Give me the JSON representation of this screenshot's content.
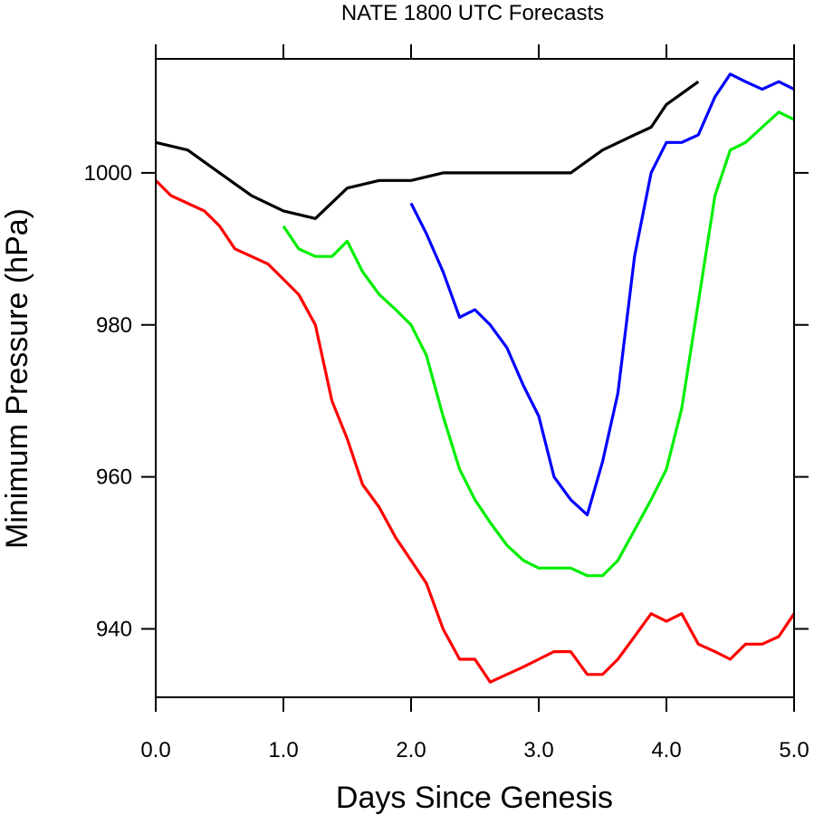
{
  "chart_data": {
    "type": "line",
    "title": "NATE 1800 UTC Forecasts",
    "xlabel": "Days Since Genesis",
    "ylabel": "Minimum Pressure (hPa)",
    "xlim": [
      0,
      5
    ],
    "ylim": [
      931,
      1015
    ],
    "x_ticks": [
      {
        "value": 0,
        "label": "0.0"
      },
      {
        "value": 1,
        "label": "1.0"
      },
      {
        "value": 2,
        "label": "2.0"
      },
      {
        "value": 3,
        "label": "3.0"
      },
      {
        "value": 4,
        "label": "4.0"
      },
      {
        "value": 5,
        "label": "5.0"
      }
    ],
    "y_ticks": [
      {
        "value": 940,
        "label": "940"
      },
      {
        "value": 960,
        "label": "960"
      },
      {
        "value": 980,
        "label": "980"
      },
      {
        "value": 1000,
        "label": "1000"
      }
    ],
    "grid": false,
    "legend": "none",
    "series": [
      {
        "color": "#000000",
        "x": [
          0,
          0.25,
          0.5,
          0.75,
          1.0,
          1.25,
          1.5,
          1.75,
          2.0,
          2.25,
          2.5,
          2.75,
          3.0,
          3.25,
          3.5,
          3.75,
          3.88,
          4.0,
          4.25
        ],
        "values": [
          1004,
          1003,
          1000,
          997,
          995,
          994,
          998,
          999,
          999,
          1000,
          1000,
          1000,
          1000,
          1000,
          1003,
          1005,
          1006,
          1009,
          1012
        ]
      },
      {
        "color": "#ff0000",
        "x": [
          0,
          0.12,
          0.25,
          0.38,
          0.5,
          0.62,
          0.75,
          0.88,
          1.0,
          1.12,
          1.25,
          1.38,
          1.5,
          1.62,
          1.75,
          1.88,
          2.0,
          2.12,
          2.25,
          2.38,
          2.5,
          2.62,
          2.75,
          2.88,
          3.0,
          3.12,
          3.25,
          3.38,
          3.5,
          3.62,
          3.75,
          3.88,
          4.0,
          4.12,
          4.25,
          4.38,
          4.5,
          4.62,
          4.75,
          4.88,
          5.0
        ],
        "values": [
          999,
          997,
          996,
          995,
          993,
          990,
          989,
          988,
          986,
          984,
          980,
          970,
          965,
          959,
          956,
          952,
          949,
          946,
          940,
          936,
          936,
          933,
          934,
          935,
          936,
          937,
          937,
          934,
          934,
          936,
          939,
          942,
          941,
          942,
          938,
          937,
          936,
          938,
          938,
          939,
          942
        ]
      },
      {
        "color": "#00ee00",
        "x": [
          1.0,
          1.12,
          1.25,
          1.38,
          1.5,
          1.62,
          1.75,
          1.88,
          2.0,
          2.12,
          2.25,
          2.38,
          2.5,
          2.62,
          2.75,
          2.88,
          3.0,
          3.12,
          3.25,
          3.38,
          3.5,
          3.62,
          3.75,
          3.88,
          4.0,
          4.12,
          4.25,
          4.38,
          4.5,
          4.62,
          4.75,
          4.88,
          5.0
        ],
        "values": [
          993,
          990,
          989,
          989,
          991,
          987,
          984,
          982,
          980,
          976,
          968,
          961,
          957,
          954,
          951,
          949,
          948,
          948,
          948,
          947,
          947,
          949,
          953,
          957,
          961,
          969,
          983,
          997,
          1003,
          1004,
          1006,
          1008,
          1007
        ]
      },
      {
        "color": "#0000ff",
        "x": [
          2.0,
          2.12,
          2.25,
          2.38,
          2.5,
          2.62,
          2.75,
          2.88,
          3.0,
          3.12,
          3.25,
          3.38,
          3.5,
          3.62,
          3.75,
          3.88,
          4.0,
          4.12,
          4.25,
          4.38,
          4.5,
          4.62,
          4.75,
          4.88,
          5.0
        ],
        "values": [
          996,
          992,
          987,
          981,
          982,
          980,
          977,
          972,
          968,
          960,
          957,
          955,
          962,
          971,
          989,
          1000,
          1004,
          1004,
          1005,
          1010,
          1013,
          1012,
          1011,
          1012,
          1011
        ]
      }
    ]
  }
}
